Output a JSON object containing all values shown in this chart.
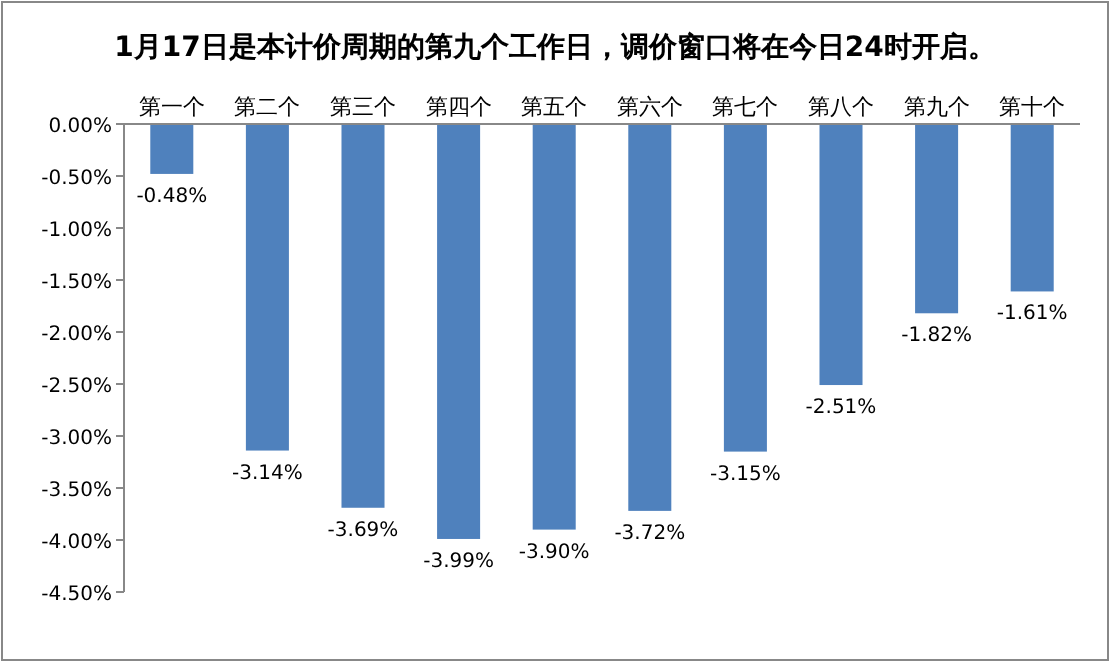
{
  "chart_data": {
    "type": "bar",
    "title": "1月17日是本计价周期的第九个工作日，调价窗口将在今日24时开启。",
    "categories": [
      "第一个",
      "第二个",
      "第三个",
      "第四个",
      "第五个",
      "第六个",
      "第七个",
      "第八个",
      "第九个",
      "第十个"
    ],
    "values": [
      -0.48,
      -3.14,
      -3.69,
      -3.99,
      -3.9,
      -3.72,
      -3.15,
      -2.51,
      -1.82,
      -1.61
    ],
    "value_labels": [
      "-0.48%",
      "-3.14%",
      "-3.69%",
      "-3.99%",
      "-3.90%",
      "-3.72%",
      "-3.15%",
      "-2.51%",
      "-1.82%",
      "-1.61%"
    ],
    "color": "#4f81bd",
    "ylim": [
      -4.5,
      0
    ],
    "yticks": [
      {
        "value": 0,
        "label": "0.00%"
      },
      {
        "value": -0.5,
        "label": "-0.50%"
      },
      {
        "value": -1,
        "label": "-1.00%"
      },
      {
        "value": -1.5,
        "label": "-1.50%"
      },
      {
        "value": -2,
        "label": "-2.00%"
      },
      {
        "value": -2.5,
        "label": "-2.50%"
      },
      {
        "value": -3,
        "label": "-3.00%"
      },
      {
        "value": -3.5,
        "label": "-3.50%"
      },
      {
        "value": -4,
        "label": "-4.00%"
      },
      {
        "value": -4.5,
        "label": "-4.50%"
      }
    ],
    "grid": false
  }
}
